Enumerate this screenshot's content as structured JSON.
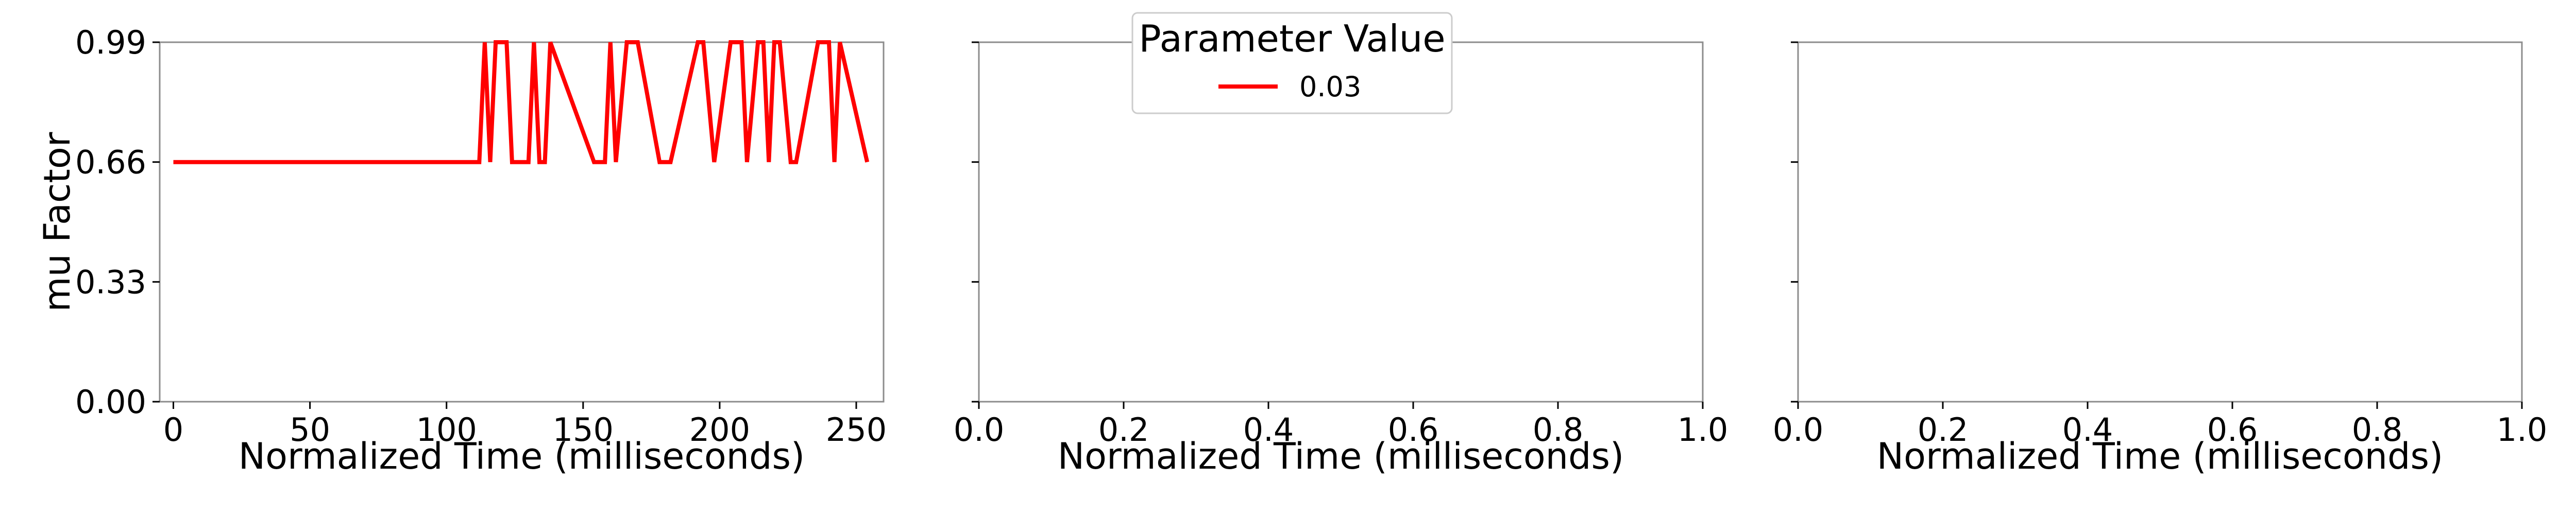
{
  "chart_data": [
    {
      "type": "line",
      "xlabel": "Normalized Time (milliseconds)",
      "ylabel": "mu Factor",
      "xlim": [
        -5,
        260
      ],
      "ylim": [
        0,
        0.99
      ],
      "xticks": [
        0,
        50,
        100,
        150,
        200,
        250
      ],
      "xtick_labels": [
        "0",
        "50",
        "100",
        "150",
        "200",
        "250"
      ],
      "yticks": [
        0,
        0.33,
        0.66,
        0.99
      ],
      "ytick_labels": [
        "0.00",
        "0.33",
        "0.66",
        "0.99"
      ],
      "legend": {
        "title": "Parameter Value",
        "placement": "top-center",
        "entries": [
          {
            "label": "0.03",
            "color": "#ff0000"
          }
        ]
      },
      "series": [
        {
          "name": "0.03",
          "color": "#ff0000",
          "x": [
            0,
            112,
            114,
            116,
            118,
            122,
            124,
            130,
            132,
            134,
            136,
            138,
            154,
            158,
            160,
            162,
            166,
            170,
            178,
            182,
            192,
            194,
            198,
            204,
            208,
            210,
            214,
            216,
            218,
            220,
            222,
            226,
            228,
            236,
            240,
            242,
            244,
            254
          ],
          "y": [
            0.66,
            0.66,
            0.99,
            0.66,
            0.99,
            0.99,
            0.66,
            0.66,
            0.99,
            0.66,
            0.66,
            0.99,
            0.66,
            0.66,
            0.99,
            0.66,
            0.99,
            0.99,
            0.66,
            0.66,
            0.99,
            0.99,
            0.66,
            0.99,
            0.99,
            0.66,
            0.99,
            0.99,
            0.66,
            0.99,
            0.99,
            0.66,
            0.66,
            0.99,
            0.99,
            0.66,
            0.99,
            0.66
          ]
        }
      ]
    },
    {
      "type": "line",
      "xlabel": "Normalized Time (milliseconds)",
      "ylabel": "",
      "xlim": [
        0,
        1
      ],
      "ylim": [
        0,
        0.99
      ],
      "xticks": [
        0,
        0.2,
        0.4,
        0.6,
        0.8,
        1.0
      ],
      "xtick_labels": [
        "0.0",
        "0.2",
        "0.4",
        "0.6",
        "0.8",
        "1.0"
      ],
      "yticks": [
        0,
        0.33,
        0.66,
        0.99
      ],
      "series": []
    },
    {
      "type": "line",
      "xlabel": "Normalized Time (milliseconds)",
      "ylabel": "",
      "xlim": [
        0,
        1
      ],
      "ylim": [
        0,
        0.99
      ],
      "xticks": [
        0,
        0.2,
        0.4,
        0.6,
        0.8,
        1.0
      ],
      "xtick_labels": [
        "0.0",
        "0.2",
        "0.4",
        "0.6",
        "0.8",
        "1.0"
      ],
      "yticks": [
        0,
        0.33,
        0.66,
        0.99
      ],
      "series": []
    }
  ]
}
